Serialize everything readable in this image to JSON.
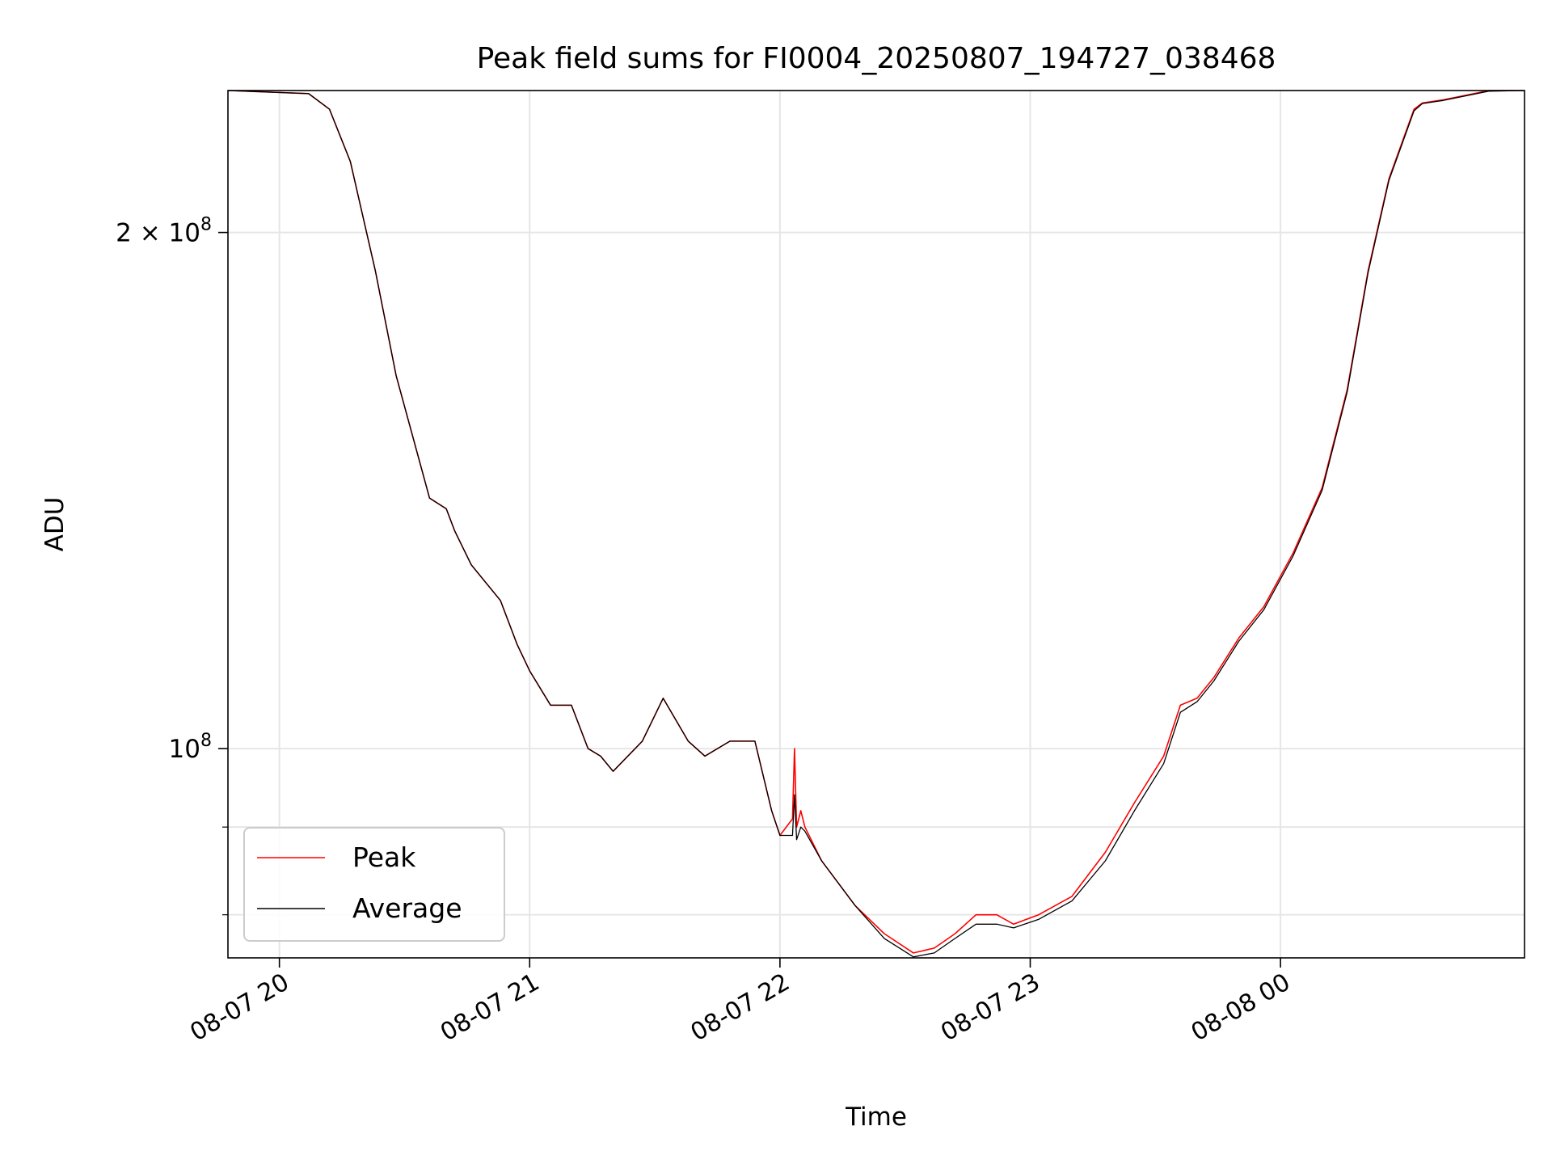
{
  "chart_data": {
    "type": "line",
    "title": "Peak field sums for FI0004_20250807_194727_038468",
    "xlabel": "Time",
    "ylabel": "ADU",
    "yscale": "log",
    "xlim": [
      "2025-08-07 19:47:40",
      "2025-08-08 00:58:30"
    ],
    "ylim": [
      75500000,
      242000000
    ],
    "grid": true,
    "legend": "lower left",
    "x_ticks": [
      {
        "label": "08-07 20",
        "value": "2025-08-07 20:00"
      },
      {
        "label": "08-07 21",
        "value": "2025-08-07 21:00"
      },
      {
        "label": "08-07 22",
        "value": "2025-08-07 22:00"
      },
      {
        "label": "08-07 23",
        "value": "2025-08-07 23:00"
      },
      {
        "label": "08-08 00",
        "value": "2025-08-08 00:00"
      }
    ],
    "y_ticks_major": [
      {
        "value": 100000000,
        "base": "10",
        "exp": "8",
        "prefix": ""
      },
      {
        "value": 200000000,
        "base": "10",
        "exp": "8",
        "prefix": "2 × "
      }
    ],
    "y_ticks_minor": [
      80000000,
      90000000
    ],
    "series": [
      {
        "name": "Peak",
        "color": "#ff0000",
        "x": [
          "2025-08-07 19:47:40",
          "2025-08-07 20:07:00",
          "2025-08-07 20:12:00",
          "2025-08-07 20:17:00",
          "2025-08-07 20:23:00",
          "2025-08-07 20:28:00",
          "2025-08-07 20:36:00",
          "2025-08-07 20:40:00",
          "2025-08-07 20:42:00",
          "2025-08-07 20:46:00",
          "2025-08-07 20:53:00",
          "2025-08-07 20:57:00",
          "2025-08-07 21:00:00",
          "2025-08-07 21:05:00",
          "2025-08-07 21:10:00",
          "2025-08-07 21:14:00",
          "2025-08-07 21:17:00",
          "2025-08-07 21:20:00",
          "2025-08-07 21:27:00",
          "2025-08-07 21:32:00",
          "2025-08-07 21:38:00",
          "2025-08-07 21:42:00",
          "2025-08-07 21:48:00",
          "2025-08-07 21:54:00",
          "2025-08-07 21:58:00",
          "2025-08-07 22:00:00",
          "2025-08-07 22:03:00",
          "2025-08-07 22:03:30",
          "2025-08-07 22:04:00",
          "2025-08-07 22:05:00",
          "2025-08-07 22:06:00",
          "2025-08-07 22:10:00",
          "2025-08-07 22:18:00",
          "2025-08-07 22:25:00",
          "2025-08-07 22:32:00",
          "2025-08-07 22:37:00",
          "2025-08-07 22:42:00",
          "2025-08-07 22:47:00",
          "2025-08-07 22:52:00",
          "2025-08-07 22:56:00",
          "2025-08-07 23:02:00",
          "2025-08-07 23:10:00",
          "2025-08-07 23:18:00",
          "2025-08-07 23:25:00",
          "2025-08-07 23:32:00",
          "2025-08-07 23:36:00",
          "2025-08-07 23:40:00",
          "2025-08-07 23:44:00",
          "2025-08-07 23:50:00",
          "2025-08-07 23:56:00",
          "2025-08-08 00:03:00",
          "2025-08-08 00:10:00",
          "2025-08-08 00:16:00",
          "2025-08-08 00:21:00",
          "2025-08-08 00:26:00",
          "2025-08-08 00:32:00",
          "2025-08-08 00:34:00",
          "2025-08-08 00:39:00",
          "2025-08-08 00:50:00",
          "2025-08-08 00:58:30"
        ],
        "values": [
          242000000,
          241000000,
          236000000,
          220000000,
          190000000,
          165000000,
          140000000,
          138000000,
          134000000,
          128000000,
          122000000,
          115000000,
          111000000,
          106000000,
          106000000,
          100000000,
          99000000,
          97000000,
          101000000,
          107000000,
          101000000,
          99000000,
          101000000,
          101000000,
          92000000,
          89000000,
          91000000,
          100000000,
          90000000,
          92000000,
          90000000,
          86000000,
          81000000,
          78000000,
          76000000,
          76500000,
          78000000,
          80000000,
          80000000,
          79000000,
          80000000,
          82000000,
          87000000,
          93000000,
          99000000,
          106000000,
          107000000,
          110000000,
          116000000,
          121000000,
          130000000,
          142000000,
          162000000,
          190000000,
          215000000,
          236000000,
          238000000,
          239000000,
          242000000,
          242000000
        ]
      },
      {
        "name": "Average",
        "color": "#000000",
        "x": [
          "2025-08-07 19:47:40",
          "2025-08-07 20:07:00",
          "2025-08-07 20:12:00",
          "2025-08-07 20:17:00",
          "2025-08-07 20:23:00",
          "2025-08-07 20:28:00",
          "2025-08-07 20:36:00",
          "2025-08-07 20:40:00",
          "2025-08-07 20:42:00",
          "2025-08-07 20:46:00",
          "2025-08-07 20:53:00",
          "2025-08-07 20:57:00",
          "2025-08-07 21:00:00",
          "2025-08-07 21:05:00",
          "2025-08-07 21:10:00",
          "2025-08-07 21:14:00",
          "2025-08-07 21:17:00",
          "2025-08-07 21:20:00",
          "2025-08-07 21:27:00",
          "2025-08-07 21:32:00",
          "2025-08-07 21:38:00",
          "2025-08-07 21:42:00",
          "2025-08-07 21:48:00",
          "2025-08-07 21:54:00",
          "2025-08-07 21:58:00",
          "2025-08-07 22:00:00",
          "2025-08-07 22:03:00",
          "2025-08-07 22:03:30",
          "2025-08-07 22:04:00",
          "2025-08-07 22:05:00",
          "2025-08-07 22:06:00",
          "2025-08-07 22:10:00",
          "2025-08-07 22:18:00",
          "2025-08-07 22:25:00",
          "2025-08-07 22:32:00",
          "2025-08-07 22:37:00",
          "2025-08-07 22:42:00",
          "2025-08-07 22:47:00",
          "2025-08-07 22:52:00",
          "2025-08-07 22:56:00",
          "2025-08-07 23:02:00",
          "2025-08-07 23:10:00",
          "2025-08-07 23:18:00",
          "2025-08-07 23:25:00",
          "2025-08-07 23:32:00",
          "2025-08-07 23:36:00",
          "2025-08-07 23:40:00",
          "2025-08-07 23:44:00",
          "2025-08-07 23:50:00",
          "2025-08-07 23:56:00",
          "2025-08-08 00:03:00",
          "2025-08-08 00:10:00",
          "2025-08-08 00:16:00",
          "2025-08-08 00:21:00",
          "2025-08-08 00:26:00",
          "2025-08-08 00:32:00",
          "2025-08-08 00:34:00",
          "2025-08-08 00:39:00",
          "2025-08-08 00:50:00",
          "2025-08-08 00:58:30"
        ],
        "values": [
          242000000,
          241000000,
          236000000,
          220000000,
          190000000,
          165000000,
          140000000,
          138000000,
          134000000,
          128000000,
          122000000,
          115000000,
          111000000,
          106000000,
          106000000,
          100000000,
          99000000,
          97000000,
          101000000,
          107000000,
          101000000,
          99000000,
          101000000,
          101000000,
          92000000,
          89000000,
          89000000,
          94000000,
          88500000,
          90000000,
          89500000,
          86000000,
          81000000,
          77500000,
          75600000,
          76000000,
          77500000,
          79000000,
          79000000,
          78600000,
          79500000,
          81500000,
          86000000,
          92000000,
          98000000,
          105000000,
          106500000,
          109500000,
          115500000,
          120500000,
          129500000,
          141500000,
          161500000,
          189500000,
          214500000,
          235500000,
          237800000,
          238800000,
          241800000,
          242000000
        ]
      }
    ]
  }
}
